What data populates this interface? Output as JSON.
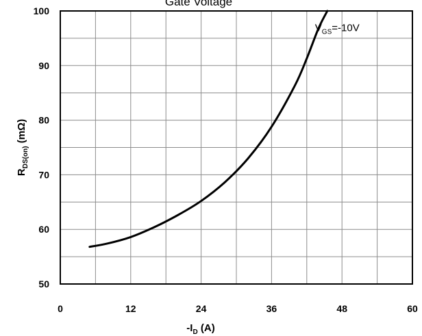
{
  "chart_data": {
    "type": "line",
    "title": "Gate Voltage",
    "xlabel": {
      "prefix": "-I",
      "sub": "D",
      "suffix": " (A)"
    },
    "ylabel": {
      "prefix": "R",
      "sub": "DS(on)",
      "suffix": " (mΩ)"
    },
    "xlim": [
      0,
      60
    ],
    "ylim": [
      50,
      100
    ],
    "x_ticks": [
      "0",
      "12",
      "24",
      "36",
      "48",
      "60"
    ],
    "y_ticks": [
      "50",
      "60",
      "70",
      "80",
      "90",
      "100"
    ],
    "x_minor_step": 6,
    "y_minor_step": 5,
    "grid": true,
    "series": [
      {
        "name": {
          "prefix": "V",
          "sub": "GS",
          "suffix": "=-10V"
        },
        "color": "#000000",
        "x": [
          5,
          8,
          12,
          16,
          20,
          24,
          28,
          32,
          36,
          40,
          42,
          44,
          45.5
        ],
        "y": [
          56.8,
          57.4,
          58.6,
          60.4,
          62.6,
          65.2,
          68.6,
          73.0,
          78.8,
          86.4,
          91.3,
          96.8,
          100
        ]
      }
    ]
  }
}
